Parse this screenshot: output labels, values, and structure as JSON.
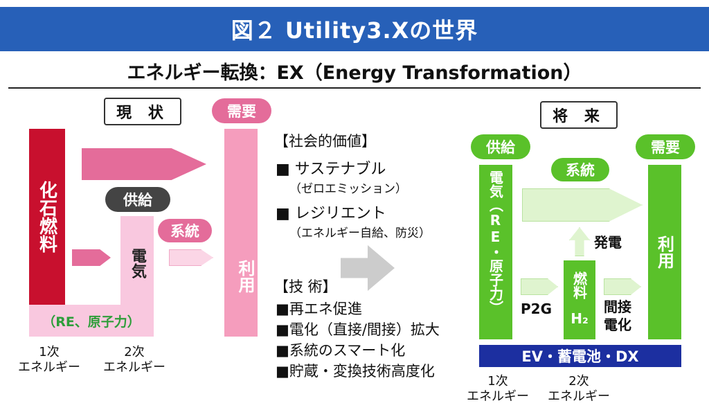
{
  "title": "図２ Utility3.Xの世界",
  "subtitle": "エネルギー転換：EX（Energy Transformation）",
  "current": {
    "label": "現 状",
    "demand": "需要",
    "fossil": "化石燃料",
    "supply": "供給",
    "electricity": "電気",
    "renewable": "（RE、原子力）",
    "grid": "系統",
    "use": "利用",
    "primary": "1次\nエネルギー",
    "secondary": "2次\nエネルギー"
  },
  "values": {
    "heading": "【社会的価値】",
    "items": [
      {
        "title": "■ サステナブル",
        "sub": "（ゼロエミッション）"
      },
      {
        "title": "■ レジリエント",
        "sub": "（エネルギー自給、防災）"
      }
    ]
  },
  "tech": {
    "heading": "【技 術】",
    "items": [
      "■再エネ促進",
      "■電化（直接/間接）拡大",
      "■系統のスマート化",
      "■貯蔵・変換技術高度化"
    ]
  },
  "future": {
    "label": "将 来",
    "supply": "供給",
    "demand": "需要",
    "grid": "系統",
    "electricity": "電気（RE・原子力）",
    "generation": "発電",
    "fuel": "燃料",
    "h2": "H₂",
    "p2g": "P2G",
    "indirect": "間接\n電化",
    "use": "利用",
    "bar": "EV・蓄電池・DX",
    "primary": "1次\nエネルギー",
    "secondary": "2次\nエネルギー"
  },
  "colors": {
    "banner": "#2760b8",
    "fossil": "#c8102e",
    "pink": "#e46c9a",
    "light_pink": "#f9c8df",
    "pink_use": "#f59dbd",
    "green": "#5ac12a",
    "light_green": "#dff4cf",
    "navy": "#1c2fa0"
  }
}
